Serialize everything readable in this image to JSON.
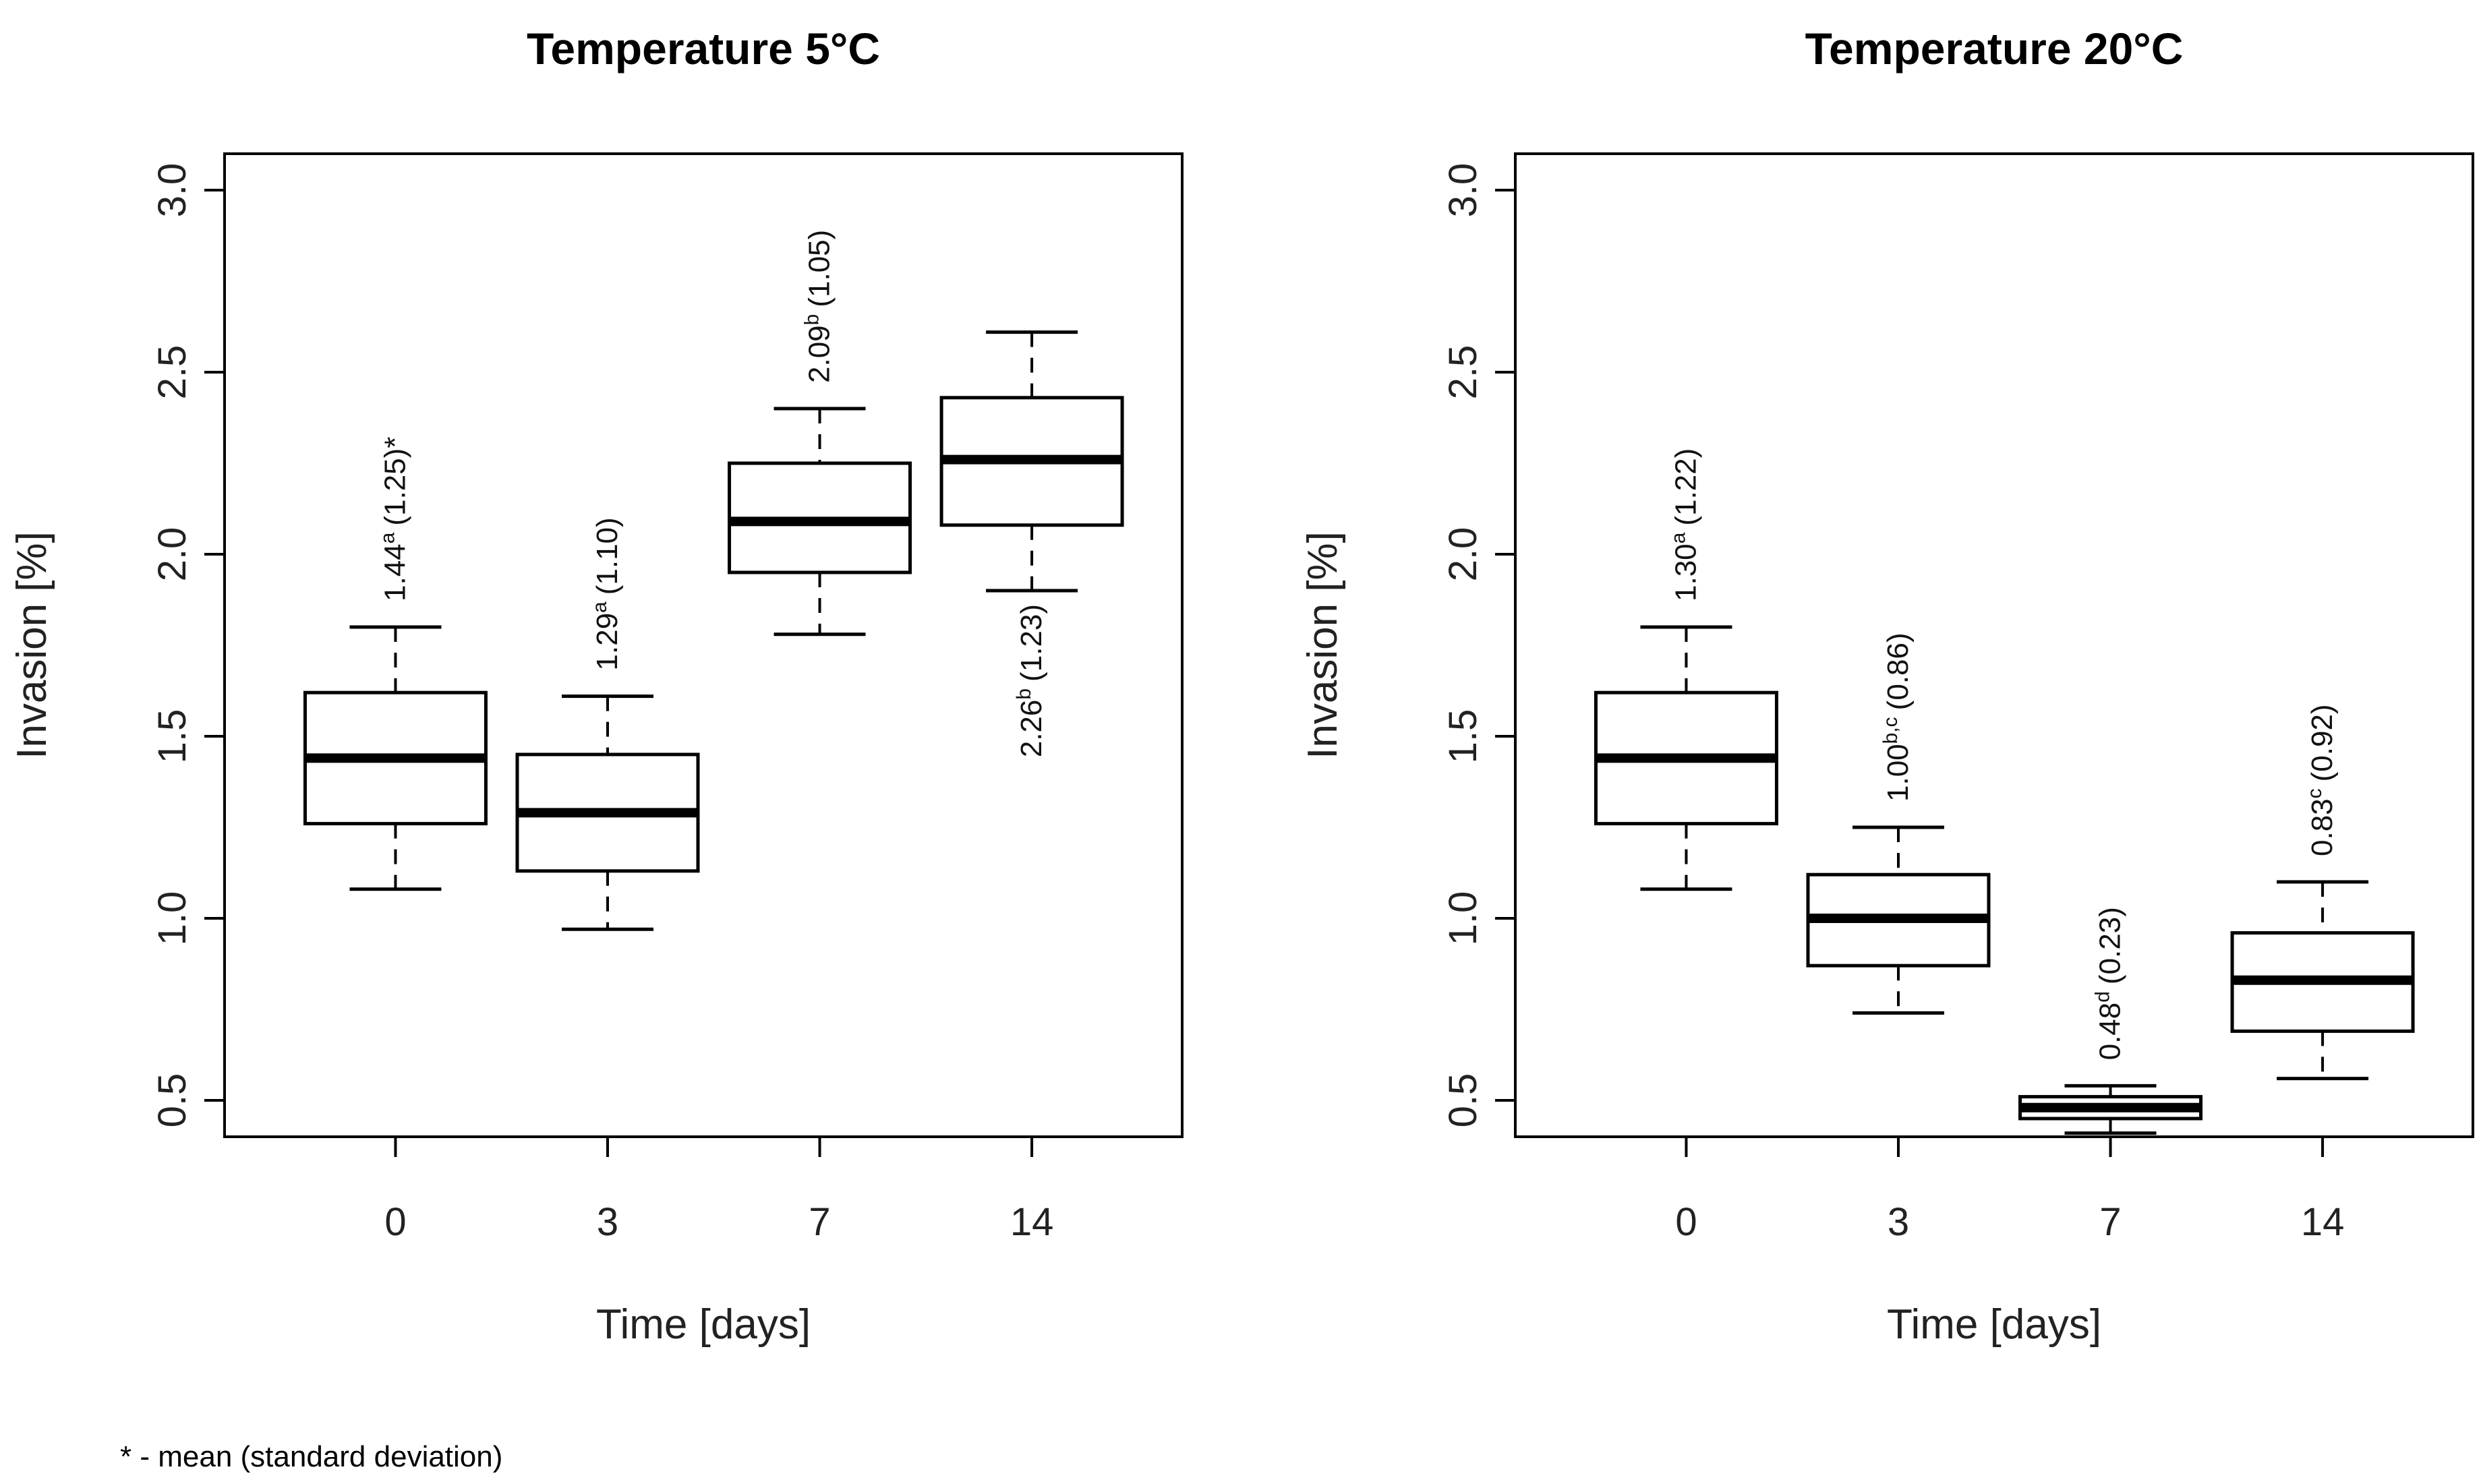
{
  "footnote": "* - mean (standard deviation)",
  "chart_data": [
    {
      "type": "boxplot",
      "title": "Temperature 5°C",
      "xlabel": "Time [days]",
      "ylabel": "Invasion [%]",
      "ylim": [
        0.4,
        3.1
      ],
      "yticks": [
        "0.5",
        "1.0",
        "1.5",
        "2.0",
        "2.5",
        "3.0"
      ],
      "categories": [
        "0",
        "3",
        "7",
        "14"
      ],
      "boxes": [
        {
          "category": "0",
          "whisker_low": 1.08,
          "q1": 1.26,
          "median": 1.44,
          "q3": 1.62,
          "whisker_high": 1.8,
          "annotation": {
            "mean": "1.44",
            "sup": "a",
            "sd": "(1.25)",
            "suffix": "*",
            "side": "above"
          }
        },
        {
          "category": "3",
          "whisker_low": 0.97,
          "q1": 1.13,
          "median": 1.29,
          "q3": 1.45,
          "whisker_high": 1.61,
          "annotation": {
            "mean": "1.29",
            "sup": "a",
            "sd": "(1.10)",
            "suffix": "",
            "side": "above"
          }
        },
        {
          "category": "7",
          "whisker_low": 1.78,
          "q1": 1.95,
          "median": 2.09,
          "q3": 2.25,
          "whisker_high": 2.4,
          "annotation": {
            "mean": "2.09",
            "sup": "b",
            "sd": "(1.05)",
            "suffix": "",
            "side": "above"
          }
        },
        {
          "category": "14",
          "whisker_low": 1.9,
          "q1": 2.08,
          "median": 2.26,
          "q3": 2.43,
          "whisker_high": 2.61,
          "annotation": {
            "mean": "2.26",
            "sup": "b",
            "sd": "(1.23)",
            "suffix": "",
            "side": "below"
          }
        }
      ]
    },
    {
      "type": "boxplot",
      "title": "Temperature 20°C",
      "xlabel": "Time [days]",
      "ylabel": "Invasion [%]",
      "ylim": [
        0.4,
        3.1
      ],
      "yticks": [
        "0.5",
        "1.0",
        "1.5",
        "2.0",
        "2.5",
        "3.0"
      ],
      "categories": [
        "0",
        "3",
        "7",
        "14"
      ],
      "boxes": [
        {
          "category": "0",
          "whisker_low": 1.08,
          "q1": 1.26,
          "median": 1.44,
          "q3": 1.62,
          "whisker_high": 1.8,
          "annotation": {
            "mean": "1.30",
            "sup": "a",
            "sd": "(1.22)",
            "suffix": "",
            "side": "above"
          }
        },
        {
          "category": "3",
          "whisker_low": 0.74,
          "q1": 0.87,
          "median": 1.0,
          "q3": 1.12,
          "whisker_high": 1.25,
          "annotation": {
            "mean": "1.00",
            "sup": "b,c",
            "sd": "(0.86)",
            "suffix": "",
            "side": "above"
          }
        },
        {
          "category": "7",
          "whisker_low": 0.41,
          "q1": 0.45,
          "median": 0.48,
          "q3": 0.51,
          "whisker_high": 0.54,
          "annotation": {
            "mean": "0.48",
            "sup": "d",
            "sd": "(0.23)",
            "suffix": "",
            "side": "above"
          }
        },
        {
          "category": "14",
          "whisker_low": 0.56,
          "q1": 0.69,
          "median": 0.83,
          "q3": 0.96,
          "whisker_high": 1.1,
          "annotation": {
            "mean": "0.83",
            "sup": "c",
            "sd": "(0.92)",
            "suffix": "",
            "side": "above"
          }
        }
      ]
    }
  ]
}
